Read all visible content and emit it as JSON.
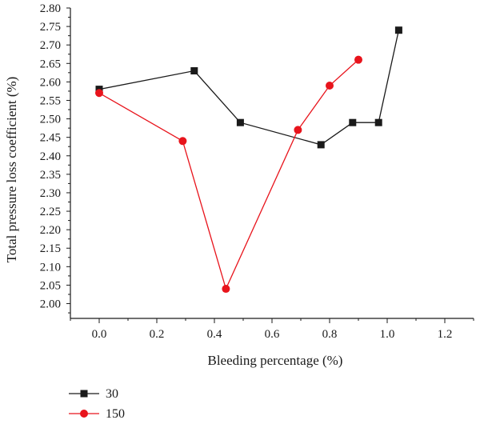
{
  "chart_data": {
    "type": "line",
    "xlabel": "Bleeding percentage (%)",
    "ylabel": "Total pressure loss coefficient (%)",
    "xlim": [
      -0.1,
      1.3
    ],
    "ylim": [
      1.96,
      2.8
    ],
    "xticks": [
      "0.0",
      "0.2",
      "0.4",
      "0.6",
      "0.8",
      "1.0",
      "1.2"
    ],
    "yticks": [
      "2.00",
      "2.05",
      "2.10",
      "2.15",
      "2.20",
      "2.25",
      "2.30",
      "2.35",
      "2.40",
      "2.45",
      "2.50",
      "2.55",
      "2.60",
      "2.65",
      "2.70",
      "2.75",
      "2.80"
    ],
    "legend_position": "bottom-left",
    "series": [
      {
        "name": "30",
        "color": "#1a1a1a",
        "marker": "square",
        "points": [
          [
            0.0,
            2.58
          ],
          [
            0.33,
            2.63
          ],
          [
            0.49,
            2.49
          ],
          [
            0.77,
            2.43
          ],
          [
            0.88,
            2.49
          ],
          [
            0.97,
            2.49
          ],
          [
            1.04,
            2.74
          ]
        ]
      },
      {
        "name": "150",
        "color": "#e8141c",
        "marker": "circle",
        "points": [
          [
            0.0,
            2.57
          ],
          [
            0.29,
            2.44
          ],
          [
            0.44,
            2.04
          ],
          [
            0.69,
            2.47
          ],
          [
            0.8,
            2.59
          ],
          [
            0.9,
            2.66
          ]
        ]
      }
    ]
  }
}
